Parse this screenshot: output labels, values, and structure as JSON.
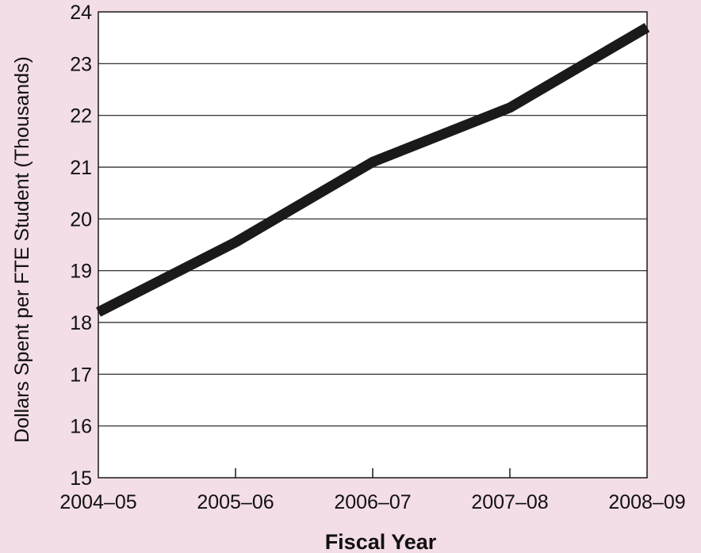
{
  "chart_data": {
    "type": "line",
    "title": "",
    "xlabel": "Fiscal Year",
    "ylabel": "Dollars Spent per FTE Student (Thousands)",
    "categories": [
      "2004–05",
      "2005–06",
      "2006–07",
      "2007–08",
      "2008–09"
    ],
    "y_ticks": [
      "15",
      "16",
      "17",
      "18",
      "19",
      "20",
      "21",
      "22",
      "23",
      "24"
    ],
    "ylim": [
      15,
      24
    ],
    "grid": true,
    "series": [
      {
        "values": [
          18.2,
          19.55,
          21.1,
          22.15,
          23.7
        ],
        "color": "#1a1a1a"
      }
    ],
    "colors": {
      "background": "#f3dde7",
      "plot_area": "#ffffff",
      "axis": "#1a1a1a",
      "grid": "#1a1a1a"
    }
  }
}
